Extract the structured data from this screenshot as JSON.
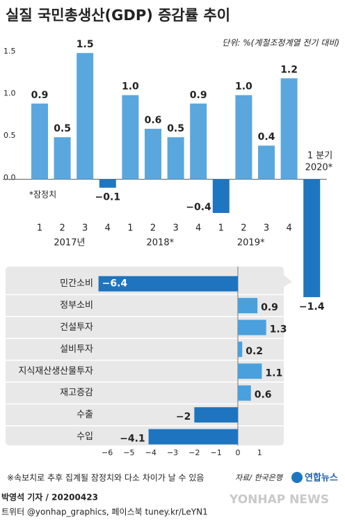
{
  "chart_data": [
    {
      "type": "bar",
      "title": "실질 국민총생산(GDP) 증감률 추이",
      "subtitle": "단위: %(계절조정계열 전기 대비)",
      "categories": [
        "1",
        "2",
        "3",
        "4",
        "1",
        "2",
        "3",
        "4",
        "1",
        "2",
        "3",
        "4",
        "1 분기"
      ],
      "year_labels": [
        "2017년",
        "2018*",
        "2019*",
        "2020*"
      ],
      "values": [
        0.9,
        0.5,
        1.5,
        -0.1,
        1.0,
        0.6,
        0.5,
        0.9,
        -0.4,
        1.0,
        0.4,
        1.2,
        -1.4
      ],
      "value_labels": [
        "0.9",
        "0.5",
        "1.5",
        "−0.1",
        "1.0",
        "0.6",
        "0.5",
        "0.9",
        "−0.4",
        "1.0",
        "0.4",
        "1.2",
        "−1.4"
      ],
      "color": "#5aa7de",
      "negative_color": "#1e76c0",
      "ylim": [
        -1.45,
        1.7
      ],
      "yticks": [
        {
          "value": 0,
          "label": "0.0"
        },
        0.5,
        {
          "value": 1,
          "label": "1.0"
        },
        1.5
      ],
      "annotation": "*잠정치"
    },
    {
      "type": "hbar",
      "categories": [
        "민간소비",
        "정부소비",
        "건설투자",
        "설비투자",
        "지식재산생산물투자",
        "재고증감",
        "수출",
        "수입"
      ],
      "values": [
        -6.4,
        0.9,
        1.3,
        0.2,
        1.1,
        0.6,
        -2,
        -4.1
      ],
      "value_labels": [
        "−6.4",
        "0.9",
        "1.3",
        "0.2",
        "1.1",
        "0.6",
        "−2",
        "−4.1"
      ],
      "color": "#4aa0dc",
      "negative_color": "#1f74bf",
      "xlim": [
        -6.5,
        2.1
      ],
      "xticks": [
        {
          "value": -6,
          "label": "−6"
        },
        {
          "value": -5,
          "label": "−5"
        },
        {
          "value": -4,
          "label": "−4"
        },
        {
          "value": -3,
          "label": "−3"
        },
        {
          "value": -2,
          "label": "−2"
        },
        {
          "value": -1,
          "label": "−1"
        },
        0,
        1
      ]
    }
  ],
  "footer": {
    "note": "※속보치로 추후 집계될 잠정치와 다소 차이가 날 수 있음",
    "source": "자료/ 한국은행",
    "logo": "연합뉴스",
    "byline": "박영석 기자 / 20200423",
    "social": "트위터 @yonhap_graphics, 페이스북 tuney.kr/LeYN1",
    "watermark": "YONHAP NEWS"
  }
}
